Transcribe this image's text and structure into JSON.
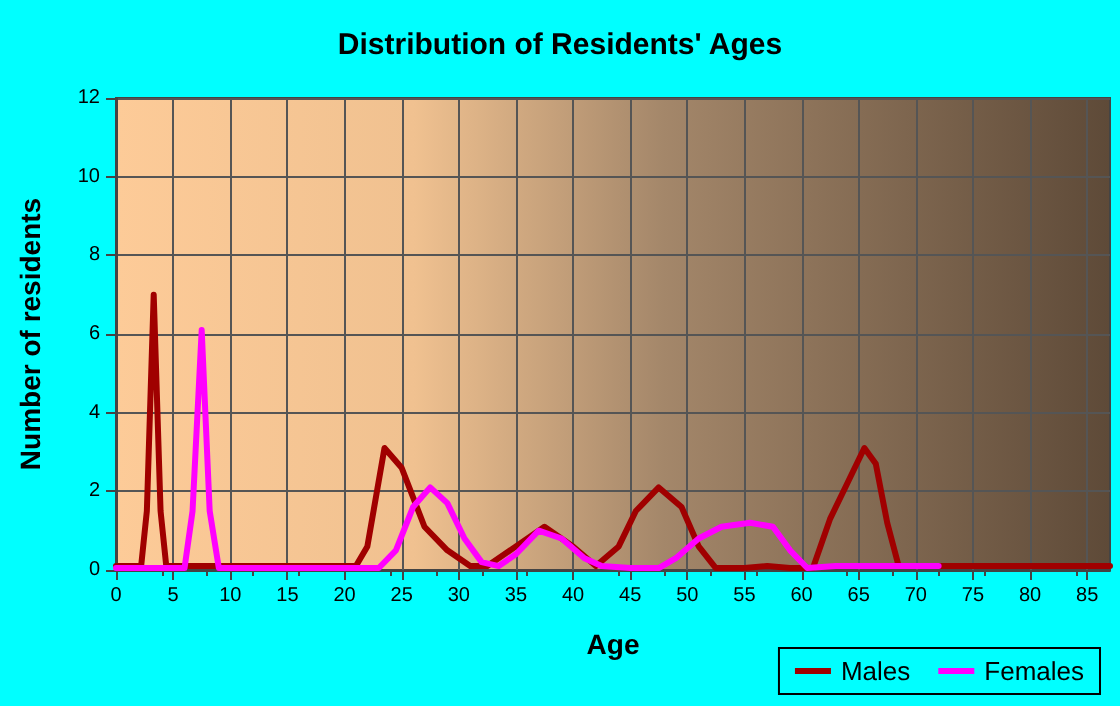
{
  "chart_data": {
    "type": "line",
    "title": "Distribution of Residents' Ages",
    "xlabel": "Age",
    "ylabel": "Number of residents",
    "xlim": [
      0,
      87
    ],
    "xticks": [
      0,
      5,
      10,
      15,
      20,
      25,
      30,
      35,
      40,
      45,
      50,
      55,
      60,
      65,
      70,
      75,
      80,
      85
    ],
    "ylim": [
      0,
      12
    ],
    "yticks": [
      0,
      2,
      4,
      6,
      8,
      10,
      12
    ],
    "grid": true,
    "legend": "bottom right",
    "marker": "none",
    "line_style": "solid",
    "series": [
      {
        "name": "Males",
        "color": "#a00000",
        "x": [
          0,
          2.2,
          2.7,
          3.3,
          3.9,
          4.4,
          6,
          10,
          15,
          21,
          22,
          23.5,
          25,
          27,
          29,
          31,
          32.5,
          35,
          37.5,
          40,
          42,
          44,
          45.5,
          47.5,
          49.5,
          51,
          52.5,
          55,
          57,
          59,
          61,
          62.5,
          64,
          65.5,
          66.5,
          67.5,
          68.5,
          72,
          80,
          87
        ],
        "values": [
          0.1,
          0.1,
          1.5,
          7,
          1.5,
          0.1,
          0.1,
          0.1,
          0.1,
          0.1,
          0.6,
          3.1,
          2.6,
          1.1,
          0.5,
          0.1,
          0.1,
          0.6,
          1.1,
          0.6,
          0.1,
          0.6,
          1.5,
          2.1,
          1.6,
          0.6,
          0.05,
          0.05,
          0.1,
          0.05,
          0.05,
          1.3,
          2.2,
          3.1,
          2.7,
          1.2,
          0.1,
          0.1,
          0.1,
          0.1
        ]
      },
      {
        "name": "Females",
        "color": "#ff00ff",
        "x": [
          0,
          6,
          6.7,
          7.5,
          8.2,
          9,
          15,
          21,
          23,
          24.5,
          26,
          27.5,
          29,
          30.5,
          32,
          33.5,
          35,
          37,
          39,
          41,
          42.5,
          45,
          47.5,
          49,
          51,
          53,
          55.5,
          57.5,
          59,
          60.5,
          63,
          66,
          72
        ],
        "values": [
          0.05,
          0.05,
          1.5,
          6.1,
          1.5,
          0.05,
          0.05,
          0.05,
          0.05,
          0.5,
          1.6,
          2.1,
          1.7,
          0.8,
          0.2,
          0.1,
          0.4,
          1.0,
          0.8,
          0.3,
          0.1,
          0.05,
          0.05,
          0.3,
          0.8,
          1.1,
          1.2,
          1.1,
          0.5,
          0.05,
          0.1,
          0.1,
          0.1
        ]
      }
    ]
  }
}
